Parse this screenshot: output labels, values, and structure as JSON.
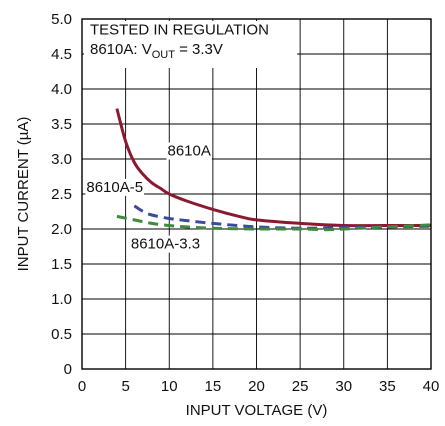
{
  "chart_data": {
    "type": "line",
    "title": "",
    "xlabel": "INPUT VOLTAGE (V)",
    "ylabel": "INPUT CURRENT (µA)",
    "xlim": [
      0,
      40
    ],
    "ylim": [
      0,
      5.0
    ],
    "grid": true,
    "x_ticks": [
      "0",
      "5",
      "10",
      "15",
      "20",
      "25",
      "30",
      "35",
      "40"
    ],
    "y_ticks": [
      "0",
      "0.5",
      "1.0",
      "1.5",
      "2.0",
      "2.5",
      "3.0",
      "3.5",
      "4.0",
      "4.5",
      "5.0"
    ],
    "annotation": {
      "line1": "TESTED IN REGULATION",
      "line2_prefix": "8610A: V",
      "line2_sub": "OUT",
      "line2_suffix": " = 3.3V"
    },
    "series": [
      {
        "name": "8610A",
        "color": "#8b1a2e",
        "style": "solid",
        "points": [
          [
            4,
            3.72
          ],
          [
            5,
            3.25
          ],
          [
            6,
            2.95
          ],
          [
            7,
            2.78
          ],
          [
            8,
            2.66
          ],
          [
            9,
            2.58
          ],
          [
            10,
            2.5
          ],
          [
            12,
            2.4
          ],
          [
            15,
            2.28
          ],
          [
            18,
            2.18
          ],
          [
            20,
            2.13
          ],
          [
            25,
            2.08
          ],
          [
            30,
            2.05
          ],
          [
            35,
            2.05
          ],
          [
            40,
            2.05
          ]
        ]
      },
      {
        "name": "8610A-5",
        "color": "#3a4aa0",
        "style": "dashed",
        "points": [
          [
            6,
            2.33
          ],
          [
            7,
            2.25
          ],
          [
            8,
            2.2
          ],
          [
            10,
            2.15
          ],
          [
            12,
            2.12
          ],
          [
            15,
            2.08
          ],
          [
            20,
            2.03
          ],
          [
            25,
            2.01
          ],
          [
            30,
            2.02
          ],
          [
            35,
            2.03
          ],
          [
            40,
            2.04
          ]
        ]
      },
      {
        "name": "8610A-3.3",
        "color": "#3f8a3f",
        "style": "dashed",
        "points": [
          [
            4,
            2.18
          ],
          [
            6,
            2.13
          ],
          [
            8,
            2.08
          ],
          [
            10,
            2.05
          ],
          [
            12,
            2.03
          ],
          [
            15,
            2.01
          ],
          [
            20,
            2.0
          ],
          [
            25,
            2.0
          ],
          [
            28,
            1.99
          ],
          [
            30,
            2.0
          ],
          [
            35,
            2.03
          ],
          [
            40,
            2.06
          ]
        ]
      }
    ],
    "series_labels": [
      "8610A",
      "8610A-5",
      "8610A-3.3"
    ]
  }
}
